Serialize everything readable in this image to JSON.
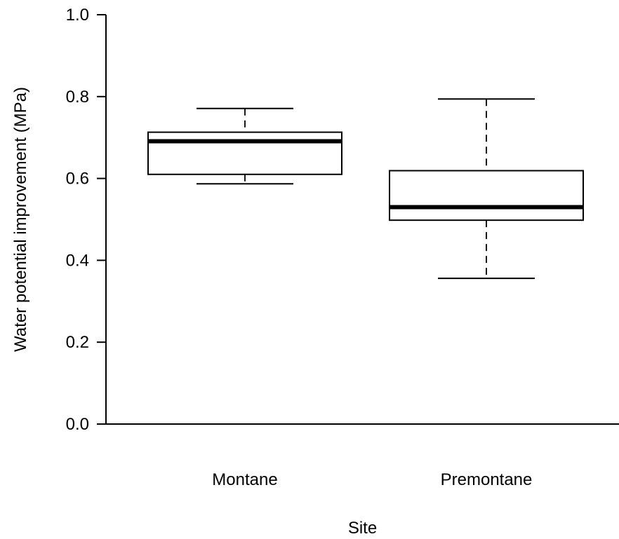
{
  "chart_data": {
    "type": "box",
    "xlabel": "Site",
    "ylabel": "Water potential improvement (MPa)",
    "ylim": [
      0.0,
      1.0
    ],
    "yticks": [
      "0.0",
      "0.2",
      "0.4",
      "0.6",
      "0.8",
      "1.0"
    ],
    "grid": false,
    "categories": [
      "Montane",
      "Premontane"
    ],
    "boxes": [
      {
        "category": "Montane",
        "whisker_low": 0.587,
        "q1": 0.61,
        "median": 0.691,
        "q3": 0.713,
        "whisker_high": 0.771
      },
      {
        "category": "Premontane",
        "whisker_low": 0.356,
        "q1": 0.498,
        "median": 0.53,
        "q3": 0.619,
        "whisker_high": 0.794
      }
    ]
  }
}
